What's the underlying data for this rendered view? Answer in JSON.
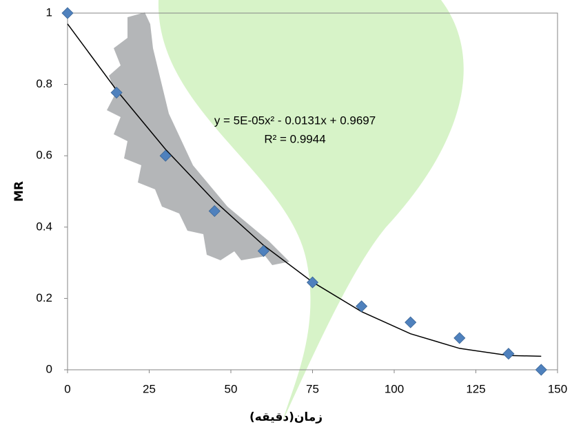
{
  "chart_data": {
    "type": "scatter",
    "xlabel": "زمان(دقیقه)",
    "ylabel": "MR",
    "annotations": [
      "y = 5E-05x² - 0.0131x + 0.9697",
      "R² = 0.9944"
    ],
    "series": [
      {
        "type": "scatter",
        "color": "#4f81bd",
        "x": [
          0,
          15,
          30,
          45,
          60,
          75,
          90,
          105,
          120,
          135,
          145
        ],
        "values": [
          1,
          0.777,
          0.6,
          0.445,
          0.333,
          0.245,
          0.178,
          0.133,
          0.089,
          0.045,
          0
        ]
      },
      {
        "type": "line",
        "color": "#000000",
        "x": [
          0,
          15,
          30,
          45,
          60,
          75,
          90,
          105,
          120,
          135,
          145
        ],
        "values": [
          0.9697,
          0.784,
          0.618,
          0.473,
          0.349,
          0.246,
          0.163,
          0.101,
          0.06,
          0.04,
          0.038
        ]
      }
    ],
    "xlim": [
      0,
      150
    ],
    "ylim": [
      0,
      1
    ],
    "xticks": [
      0,
      25,
      50,
      75,
      100,
      125,
      150
    ],
    "yticks": [
      0,
      0.2,
      0.4,
      0.6,
      0.8,
      1
    ],
    "grid": false
  }
}
